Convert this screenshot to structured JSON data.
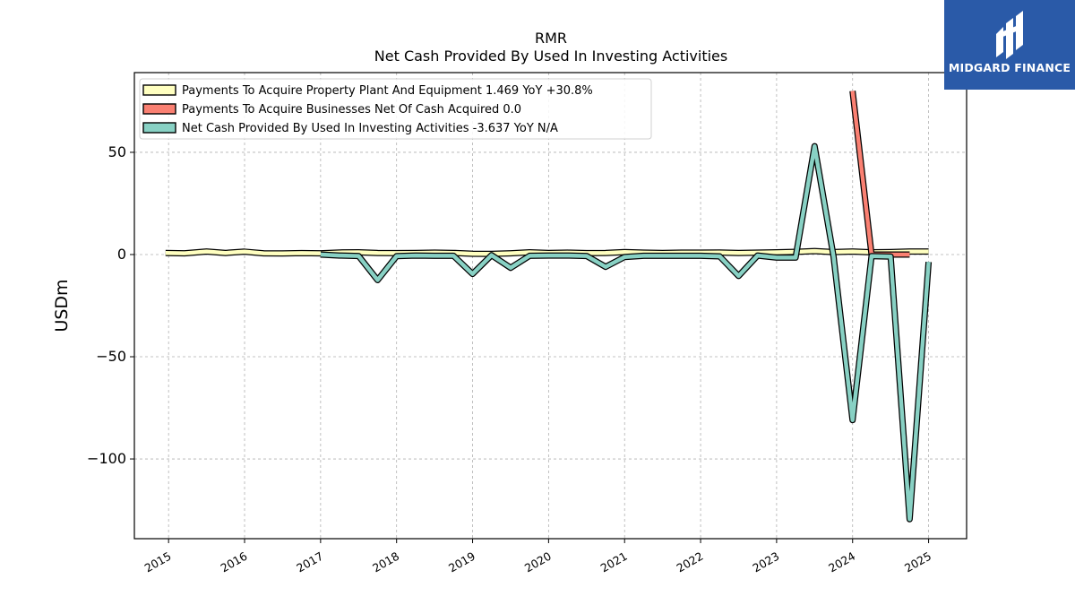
{
  "brand": {
    "name": "MIDGARD FINANCE",
    "color": "#2a5aa8"
  },
  "chart_data": {
    "type": "line",
    "title": "RMR",
    "subtitle": "Net Cash Provided By Used In Investing Activities",
    "ylabel": "USDm",
    "xlabel": "",
    "xlim": [
      2014.55,
      2025.5
    ],
    "ylim": [
      -139,
      89
    ],
    "yticks": [
      50,
      0,
      -50,
      -100
    ],
    "ytick_labels": [
      "50",
      "0",
      "−50",
      "−100"
    ],
    "xticks": [
      2015,
      2016,
      2017,
      2018,
      2019,
      2020,
      2021,
      2022,
      2023,
      2024,
      2025
    ],
    "xtick_labels": [
      "2015",
      "2016",
      "2017",
      "2018",
      "2019",
      "2020",
      "2021",
      "2022",
      "2023",
      "2024",
      "2025"
    ],
    "grid": true,
    "legend_position": "top-left",
    "series": [
      {
        "name": "Payments To Acquire Property Plant And Equipment",
        "legend_label": "Payments To Acquire Property Plant And Equipment  1.469 YoY +30.8%",
        "color": "#ffffc0",
        "x": [
          2014.96,
          2015.21,
          2015.5,
          2015.75,
          2016.0,
          2016.25,
          2016.5,
          2016.75,
          2017.0,
          2017.25,
          2017.5,
          2017.75,
          2018.0,
          2018.25,
          2018.5,
          2018.75,
          2019.0,
          2019.25,
          2019.5,
          2019.75,
          2020.0,
          2020.25,
          2020.5,
          2020.75,
          2021.0,
          2021.25,
          2021.5,
          2021.75,
          2022.0,
          2022.25,
          2022.5,
          2022.75,
          2023.0,
          2023.25,
          2023.5,
          2023.75,
          2024.0,
          2024.25,
          2024.5,
          2024.75,
          2025.0
        ],
        "y": [
          0.8,
          0.6,
          1.5,
          0.8,
          1.4,
          0.6,
          0.5,
          0.7,
          0.6,
          1.0,
          1.1,
          0.8,
          0.7,
          0.8,
          0.9,
          0.8,
          0.4,
          0.3,
          0.6,
          1.1,
          0.8,
          0.9,
          0.7,
          0.8,
          1.2,
          0.9,
          0.8,
          0.9,
          0.9,
          1.0,
          0.8,
          0.9,
          1.1,
          1.3,
          1.7,
          1.2,
          1.5,
          1.1,
          1.2,
          1.5,
          1.5
        ]
      },
      {
        "name": "Payments To Acquire Businesses Net Of Cash Acquired",
        "legend_label": "Payments To Acquire Businesses Net Of Cash Acquired  0.0",
        "color": "#fa8072",
        "x": [
          2024.0,
          2024.25,
          2024.5,
          2024.75
        ],
        "y": [
          80,
          0,
          0,
          0
        ]
      },
      {
        "name": "Net Cash Provided By Used In Investing Activities",
        "legend_label": "Net Cash Provided By Used In Investing Activities  -3.637 YoY N/A",
        "color": "#88d1c4",
        "x": [
          2017.0,
          2017.25,
          2017.5,
          2017.75,
          2018.0,
          2018.25,
          2018.5,
          2018.75,
          2019.0,
          2019.25,
          2019.5,
          2019.75,
          2020.0,
          2020.25,
          2020.5,
          2020.75,
          2021.0,
          2021.25,
          2021.5,
          2021.75,
          2022.0,
          2022.25,
          2022.5,
          2022.75,
          2023.0,
          2023.25,
          2023.5,
          2023.75,
          2024.0,
          2024.25,
          2024.5,
          2024.75,
          2025.0
        ],
        "y": [
          0.0,
          -0.5,
          -0.7,
          -12.5,
          -0.8,
          -0.5,
          -0.6,
          -0.6,
          -9.5,
          -0.3,
          -6.5,
          -0.6,
          -0.5,
          -0.5,
          -0.7,
          -6.0,
          -1.2,
          -0.6,
          -0.6,
          -0.6,
          -0.6,
          -0.9,
          -10.5,
          -0.5,
          -1.5,
          -1.5,
          53,
          -1.0,
          -81,
          -0.8,
          -1.0,
          -129.5,
          -3.6
        ]
      }
    ]
  }
}
